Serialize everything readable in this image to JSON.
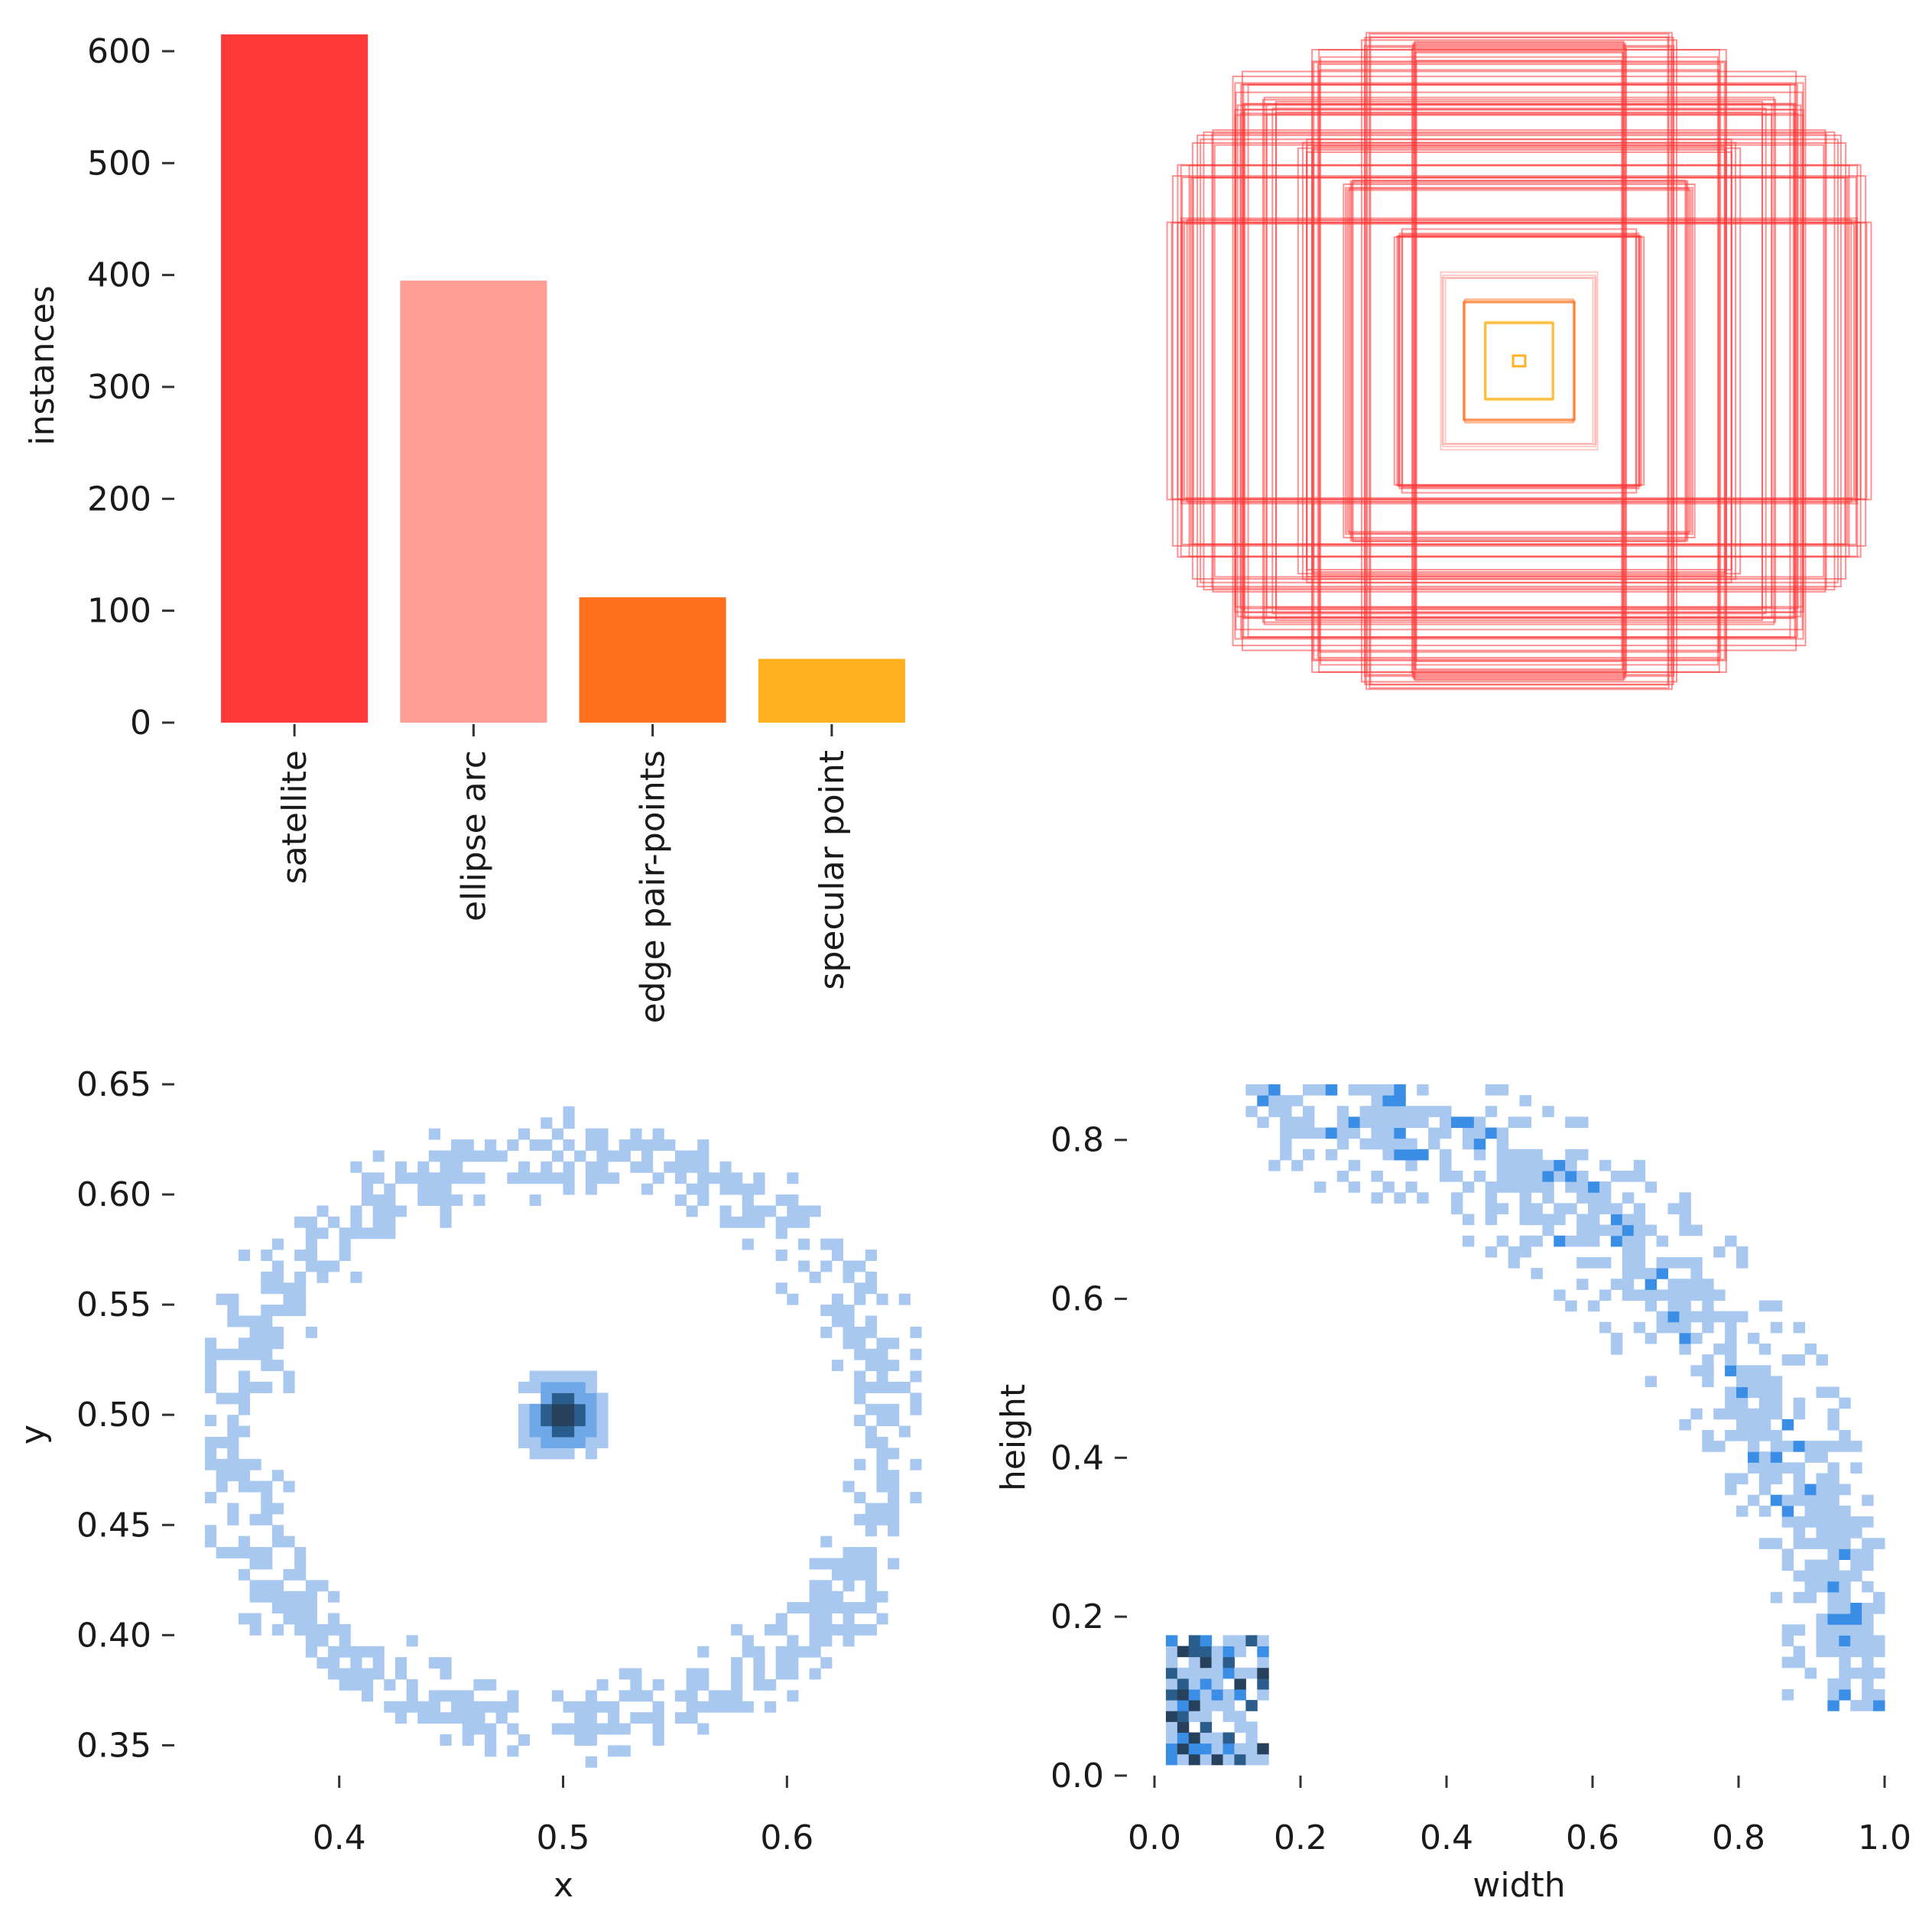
{
  "chart_data": [
    {
      "id": "class-counts",
      "type": "bar",
      "title": "",
      "xlabel": "",
      "ylabel": "instances",
      "categories": [
        "satellite",
        "ellipse arc",
        "edge pair-points",
        "specular point"
      ],
      "values": [
        615,
        395,
        112,
        57
      ],
      "colors": [
        "#ff3838",
        "#ff9d97",
        "#ff701f",
        "#ffb21d"
      ],
      "ylim": [
        0,
        615
      ],
      "yticks": [
        0,
        100,
        200,
        300,
        400,
        500,
        600
      ],
      "grid": false
    },
    {
      "id": "box-overlay",
      "type": "other",
      "description_free": true,
      "boxes": [
        {
          "w": 0.1,
          "h": 0.12,
          "color": "#ffb21d"
        },
        {
          "w": 0.16,
          "h": 0.19,
          "color": "#ff701f"
        },
        {
          "w": 0.22,
          "h": 0.27,
          "color": "#ff9d97"
        },
        {
          "w": 0.35,
          "h": 0.4,
          "color": "#ff3838"
        },
        {
          "w": 0.5,
          "h": 0.55,
          "color": "#ff3838"
        },
        {
          "w": 0.62,
          "h": 0.68,
          "color": "#ff3838"
        },
        {
          "w": 0.72,
          "h": 0.8,
          "color": "#ff3838"
        },
        {
          "w": 0.82,
          "h": 0.88,
          "color": "#ff3838"
        },
        {
          "w": 0.92,
          "h": 0.7,
          "color": "#ff3838"
        },
        {
          "w": 0.98,
          "h": 0.6,
          "color": "#ff3838"
        },
        {
          "w": 1.0,
          "h": 0.45,
          "color": "#ff3838"
        },
        {
          "w": 0.45,
          "h": 1.0,
          "color": "#ff3838"
        },
        {
          "w": 0.6,
          "h": 0.95,
          "color": "#ff3838"
        },
        {
          "w": 0.8,
          "h": 0.78,
          "color": "#ff3838"
        },
        {
          "w": 0.3,
          "h": 0.98,
          "color": "#ff3838"
        }
      ]
    },
    {
      "id": "xy-hist",
      "type": "heatmap",
      "xlabel": "x",
      "ylabel": "y",
      "xlim": [
        0.34,
        0.66
      ],
      "ylim": [
        0.33,
        0.65
      ],
      "xticks": [
        0.4,
        0.5,
        0.6
      ],
      "xtick_labels": [
        "0.4",
        "0.5",
        "0.6"
      ],
      "yticks": [
        0.35,
        0.4,
        0.45,
        0.5,
        0.55,
        0.6,
        0.65
      ],
      "ytick_labels": [
        "0.35",
        "0.40",
        "0.45",
        "0.50",
        "0.55",
        "0.60",
        "0.65"
      ],
      "ring": {
        "cx": 0.5,
        "cy": 0.49,
        "rx": 0.148,
        "ry": 0.128
      },
      "center": {
        "x": 0.5,
        "y": 0.5
      },
      "colors": [
        "#a9c8f0",
        "#6fa8e8",
        "#3a8ee6",
        "#2b5d8c",
        "#27405c"
      ]
    },
    {
      "id": "wh-hist",
      "type": "heatmap",
      "xlabel": "width",
      "ylabel": "height",
      "xlim": [
        0.0,
        1.0
      ],
      "ylim": [
        0.0,
        0.87
      ],
      "xticks": [
        0.0,
        0.2,
        0.4,
        0.6,
        0.8,
        1.0
      ],
      "xtick_labels": [
        "0.0",
        "0.2",
        "0.4",
        "0.6",
        "0.8",
        "1.0"
      ],
      "yticks": [
        0.0,
        0.2,
        0.4,
        0.6,
        0.8
      ],
      "ytick_labels": [
        "0.0",
        "0.2",
        "0.4",
        "0.6",
        "0.8"
      ],
      "small_cluster": {
        "x": [
          0.02,
          0.15
        ],
        "y": [
          0.02,
          0.17
        ]
      },
      "arc": {
        "x0": 0.12,
        "y0": 0.86,
        "x1": 0.98,
        "y1": 0.08
      },
      "colors": [
        "#a9c8f0",
        "#6fa8e8",
        "#3a8ee6",
        "#2b5d8c",
        "#27405c"
      ]
    }
  ]
}
